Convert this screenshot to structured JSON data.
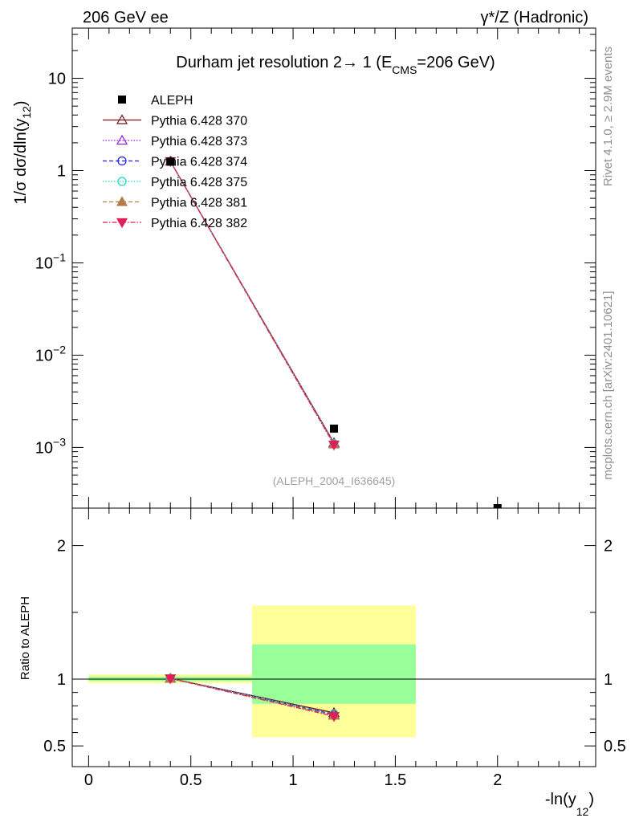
{
  "header": {
    "left": "206 GeV ee",
    "right": "γ*/Z (Hadronic)"
  },
  "chart_data": [
    {
      "type": "line",
      "title": {
        "main": "Durham jet resolution 2→ 1 (E",
        "sub": "CMS",
        "tail": "=206 GeV)"
      },
      "ylabel": {
        "main": "1/σ  dσ/dln(y",
        "sub": "12",
        "tail": ")"
      },
      "yscale": "log",
      "ylim": [
        0.00022,
        35
      ],
      "xlim": [
        -0.08,
        2.48
      ],
      "yticks": [
        {
          "v": 10,
          "label": "10",
          "exp": ""
        },
        {
          "v": 1,
          "label": "1",
          "exp": ""
        },
        {
          "v": 0.1,
          "label": "10",
          "exp": "−1"
        },
        {
          "v": 0.01,
          "label": "10",
          "exp": "−2"
        },
        {
          "v": 0.001,
          "label": "10",
          "exp": "−3"
        }
      ],
      "watermark": "(ALEPH_2004_I636645)",
      "legend_position": "top-left",
      "data": {
        "name": "ALEPH",
        "x": [
          0.4,
          1.2,
          2.0
        ],
        "y": [
          1.25,
          0.0016,
          0.00022
        ],
        "color": "#000000"
      },
      "series": [
        {
          "name": "Pythia 6.428 370",
          "color": "#7b1010",
          "dash": "",
          "marker": "triangle-open",
          "x": [
            0.4,
            1.2
          ],
          "y": [
            1.26,
            0.00112
          ]
        },
        {
          "name": "Pythia 6.428 373",
          "color": "#8a1de0",
          "dash": "1.5,2",
          "marker": "triangle-open",
          "x": [
            0.4,
            1.2
          ],
          "y": [
            1.26,
            0.0011
          ]
        },
        {
          "name": "Pythia 6.428 374",
          "color": "#1f1fe0",
          "dash": "5,3",
          "marker": "circle-open",
          "x": [
            0.4,
            1.2
          ],
          "y": [
            1.26,
            0.00109
          ]
        },
        {
          "name": "Pythia 6.428 375",
          "color": "#1ad6c2",
          "dash": "1.5,2",
          "marker": "circle-open",
          "x": [
            0.4,
            1.2
          ],
          "y": [
            1.26,
            0.0011
          ]
        },
        {
          "name": "Pythia 6.428 381",
          "color": "#b77a47",
          "dash": "5,3",
          "marker": "triangle-filled",
          "x": [
            0.4,
            1.2
          ],
          "y": [
            1.26,
            0.00108
          ]
        },
        {
          "name": "Pythia 6.428 382",
          "color": "#e01e5a",
          "dash": "6,2,1.5,2",
          "marker": "triangle-down-filled",
          "x": [
            0.4,
            1.2
          ],
          "y": [
            1.26,
            0.00107
          ]
        }
      ]
    },
    {
      "type": "line",
      "ylabel": "Ratio to ALEPH",
      "ylim": [
        0.345,
        2.28
      ],
      "xlim": [
        -0.08,
        2.48
      ],
      "yticks": [
        0.5,
        1,
        2
      ],
      "xticks": [
        0,
        0.5,
        1,
        1.5,
        2
      ],
      "xticklabels": [
        "0",
        "0.5",
        "1",
        "1.5",
        "2"
      ],
      "xlabel": {
        "main": "-ln(y",
        "sub": "12",
        "tail": ")"
      },
      "reference": 1,
      "uncertainty_bands": [
        {
          "x": [
            0.0,
            0.8
          ],
          "outer": [
            0.97,
            1.035
          ],
          "inner": [
            0.985,
            1.018
          ]
        },
        {
          "x": [
            0.8,
            1.6
          ],
          "outer": [
            0.565,
            1.55
          ],
          "inner": [
            0.815,
            1.26
          ]
        }
      ],
      "band_colors": {
        "outer": "#ffff99",
        "inner": "#99ff99"
      },
      "series": [
        {
          "name": "Pythia 6.428 370",
          "x": [
            0.4,
            1.2
          ],
          "y": [
            1.005,
            0.748
          ]
        },
        {
          "name": "Pythia 6.428 373",
          "x": [
            0.4,
            1.2
          ],
          "y": [
            1.005,
            0.735
          ]
        },
        {
          "name": "Pythia 6.428 374",
          "x": [
            0.4,
            1.2
          ],
          "y": [
            1.005,
            0.737
          ]
        },
        {
          "name": "Pythia 6.428 375",
          "x": [
            0.4,
            1.2
          ],
          "y": [
            1.005,
            0.74
          ]
        },
        {
          "name": "Pythia 6.428 381",
          "x": [
            0.4,
            1.2
          ],
          "y": [
            1.005,
            0.727
          ]
        },
        {
          "name": "Pythia 6.428 382",
          "x": [
            0.4,
            1.2
          ],
          "y": [
            1.005,
            0.722
          ]
        }
      ]
    }
  ],
  "side_labels": {
    "rivet": "Rivet 4.1.0, ≥ 2.9M events",
    "mcplots": "mcplots.cern.ch [arXiv:2401.10621]"
  }
}
